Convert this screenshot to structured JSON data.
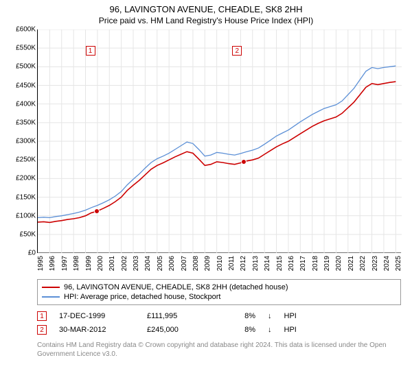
{
  "title": "96, LAVINGTON AVENUE, CHEADLE, SK8 2HH",
  "subtitle": "Price paid vs. HM Land Registry's House Price Index (HPI)",
  "chart": {
    "type": "line",
    "x_start": 1995,
    "x_end": 2025.5,
    "ylim": [
      0,
      600000
    ],
    "ytick_step": 50000,
    "ytick_labels": [
      "£0",
      "£50K",
      "£100K",
      "£150K",
      "£200K",
      "£250K",
      "£300K",
      "£350K",
      "£400K",
      "£450K",
      "£500K",
      "£550K",
      "£600K"
    ],
    "xtick_years": [
      1995,
      1996,
      1997,
      1998,
      1999,
      2000,
      2001,
      2002,
      2003,
      2004,
      2005,
      2006,
      2007,
      2008,
      2009,
      2010,
      2011,
      2012,
      2013,
      2014,
      2015,
      2016,
      2017,
      2018,
      2019,
      2020,
      2021,
      2022,
      2023,
      2024,
      2025
    ],
    "grid_color": "#e5e5e5",
    "background_color": "#ffffff",
    "series": [
      {
        "name": "property",
        "color": "#cc0000",
        "width": 1.6,
        "points": [
          [
            1995.0,
            83000
          ],
          [
            1995.5,
            84000
          ],
          [
            1996.0,
            82000
          ],
          [
            1996.5,
            85000
          ],
          [
            1997.0,
            87000
          ],
          [
            1997.5,
            90000
          ],
          [
            1998.0,
            92000
          ],
          [
            1998.5,
            95000
          ],
          [
            1999.0,
            100000
          ],
          [
            1999.5,
            108000
          ],
          [
            1999.96,
            111995
          ],
          [
            2000.5,
            120000
          ],
          [
            2001.0,
            128000
          ],
          [
            2001.5,
            138000
          ],
          [
            2002.0,
            150000
          ],
          [
            2002.5,
            168000
          ],
          [
            2003.0,
            182000
          ],
          [
            2003.5,
            195000
          ],
          [
            2004.0,
            210000
          ],
          [
            2004.5,
            225000
          ],
          [
            2005.0,
            235000
          ],
          [
            2005.5,
            242000
          ],
          [
            2006.0,
            250000
          ],
          [
            2006.5,
            258000
          ],
          [
            2007.0,
            265000
          ],
          [
            2007.5,
            272000
          ],
          [
            2008.0,
            268000
          ],
          [
            2008.5,
            252000
          ],
          [
            2009.0,
            235000
          ],
          [
            2009.5,
            238000
          ],
          [
            2010.0,
            245000
          ],
          [
            2010.5,
            243000
          ],
          [
            2011.0,
            240000
          ],
          [
            2011.5,
            238000
          ],
          [
            2012.0,
            242000
          ],
          [
            2012.25,
            245000
          ],
          [
            2012.5,
            247000
          ],
          [
            2013.0,
            250000
          ],
          [
            2013.5,
            255000
          ],
          [
            2014.0,
            265000
          ],
          [
            2014.5,
            275000
          ],
          [
            2015.0,
            285000
          ],
          [
            2015.5,
            293000
          ],
          [
            2016.0,
            300000
          ],
          [
            2016.5,
            310000
          ],
          [
            2017.0,
            320000
          ],
          [
            2017.5,
            330000
          ],
          [
            2018.0,
            340000
          ],
          [
            2018.5,
            348000
          ],
          [
            2019.0,
            355000
          ],
          [
            2019.5,
            360000
          ],
          [
            2020.0,
            365000
          ],
          [
            2020.5,
            375000
          ],
          [
            2021.0,
            390000
          ],
          [
            2021.5,
            405000
          ],
          [
            2022.0,
            425000
          ],
          [
            2022.5,
            445000
          ],
          [
            2023.0,
            455000
          ],
          [
            2023.5,
            452000
          ],
          [
            2024.0,
            455000
          ],
          [
            2024.5,
            458000
          ],
          [
            2025.0,
            460000
          ]
        ]
      },
      {
        "name": "hpi",
        "color": "#5b8fd6",
        "width": 1.3,
        "points": [
          [
            1995.0,
            95000
          ],
          [
            1995.5,
            96000
          ],
          [
            1996.0,
            95000
          ],
          [
            1996.5,
            98000
          ],
          [
            1997.0,
            100000
          ],
          [
            1997.5,
            103000
          ],
          [
            1998.0,
            106000
          ],
          [
            1998.5,
            110000
          ],
          [
            1999.0,
            115000
          ],
          [
            1999.5,
            122000
          ],
          [
            2000.0,
            128000
          ],
          [
            2000.5,
            135000
          ],
          [
            2001.0,
            143000
          ],
          [
            2001.5,
            153000
          ],
          [
            2002.0,
            165000
          ],
          [
            2002.5,
            183000
          ],
          [
            2003.0,
            198000
          ],
          [
            2003.5,
            212000
          ],
          [
            2004.0,
            228000
          ],
          [
            2004.5,
            243000
          ],
          [
            2005.0,
            253000
          ],
          [
            2005.5,
            260000
          ],
          [
            2006.0,
            268000
          ],
          [
            2006.5,
            278000
          ],
          [
            2007.0,
            288000
          ],
          [
            2007.5,
            298000
          ],
          [
            2008.0,
            294000
          ],
          [
            2008.5,
            278000
          ],
          [
            2009.0,
            260000
          ],
          [
            2009.5,
            263000
          ],
          [
            2010.0,
            270000
          ],
          [
            2010.5,
            268000
          ],
          [
            2011.0,
            265000
          ],
          [
            2011.5,
            263000
          ],
          [
            2012.0,
            267000
          ],
          [
            2012.5,
            272000
          ],
          [
            2013.0,
            276000
          ],
          [
            2013.5,
            282000
          ],
          [
            2014.0,
            292000
          ],
          [
            2014.5,
            303000
          ],
          [
            2015.0,
            314000
          ],
          [
            2015.5,
            322000
          ],
          [
            2016.0,
            330000
          ],
          [
            2016.5,
            341000
          ],
          [
            2017.0,
            352000
          ],
          [
            2017.5,
            362000
          ],
          [
            2018.0,
            372000
          ],
          [
            2018.5,
            380000
          ],
          [
            2019.0,
            388000
          ],
          [
            2019.5,
            393000
          ],
          [
            2020.0,
            398000
          ],
          [
            2020.5,
            408000
          ],
          [
            2021.0,
            425000
          ],
          [
            2021.5,
            442000
          ],
          [
            2022.0,
            465000
          ],
          [
            2022.5,
            488000
          ],
          [
            2023.0,
            498000
          ],
          [
            2023.5,
            495000
          ],
          [
            2024.0,
            498000
          ],
          [
            2024.5,
            500000
          ],
          [
            2025.0,
            502000
          ]
        ]
      }
    ],
    "markers": [
      {
        "n": "1",
        "x": 1999.96,
        "y": 111995,
        "box_x": 1999.0,
        "box_y": 555000
      },
      {
        "n": "2",
        "x": 2012.25,
        "y": 245000,
        "box_x": 2011.3,
        "box_y": 555000
      }
    ]
  },
  "legend": [
    {
      "label": "96, LAVINGTON AVENUE, CHEADLE, SK8 2HH (detached house)",
      "color": "#cc0000"
    },
    {
      "label": "HPI: Average price, detached house, Stockport",
      "color": "#5b8fd6"
    }
  ],
  "transactions": [
    {
      "n": "1",
      "date": "17-DEC-1999",
      "price": "£111,995",
      "change_pct": "8%",
      "arrow": "↓",
      "note": "HPI"
    },
    {
      "n": "2",
      "date": "30-MAR-2012",
      "price": "£245,000",
      "change_pct": "8%",
      "arrow": "↓",
      "note": "HPI"
    }
  ],
  "footnote": "Contains HM Land Registry data © Crown copyright and database right 2024. This data is licensed under the Open Government Licence v3.0."
}
